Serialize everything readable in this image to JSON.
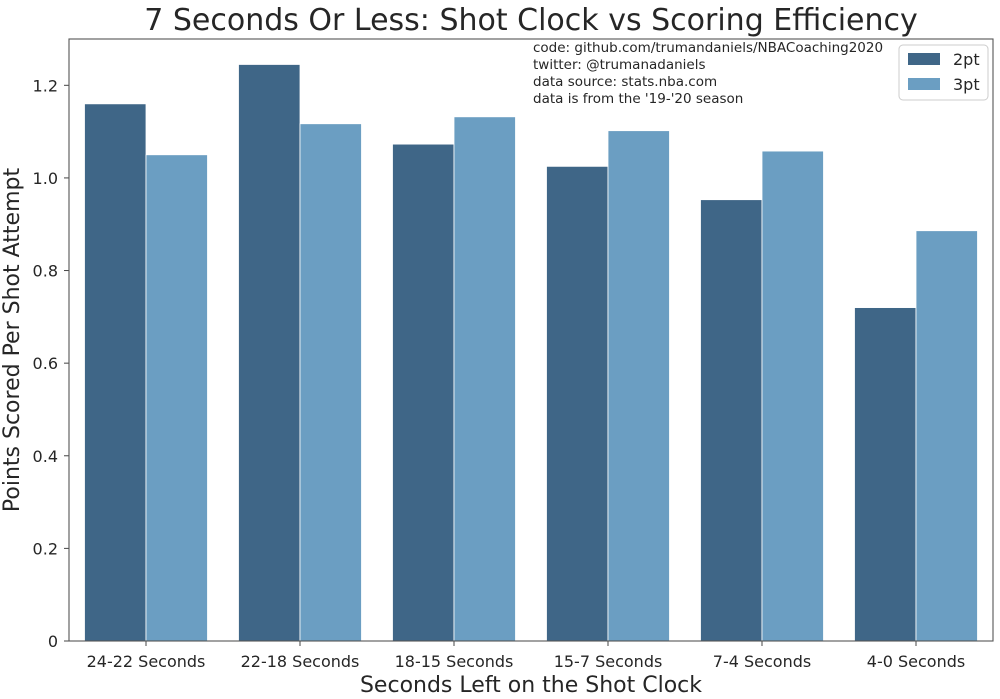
{
  "chart_data": {
    "type": "bar",
    "title": "7 Seconds Or Less: Shot Clock vs Scoring Efficiency",
    "xlabel": "Seconds Left on the Shot Clock",
    "ylabel": "Points Scored Per Shot Attempt",
    "categories": [
      "24-22 Seconds",
      "22-18 Seconds",
      "18-15 Seconds",
      "15-7 Seconds",
      "7-4 Seconds",
      "4-0 Seconds"
    ],
    "series": [
      {
        "name": "2pt",
        "color": "#3f6687",
        "values": [
          1.16,
          1.245,
          1.073,
          1.025,
          0.953,
          0.72
        ]
      },
      {
        "name": "3pt",
        "color": "#6b9ec2",
        "values": [
          1.05,
          1.117,
          1.132,
          1.102,
          1.058,
          0.886
        ]
      }
    ],
    "ylim": [
      0,
      1.3
    ],
    "yticks": [
      0,
      0.2,
      0.4,
      0.6,
      0.8,
      1.0,
      1.2
    ],
    "ytick_labels": [
      "0",
      "0.2",
      "0.4",
      "0.6",
      "0.8",
      "1.0",
      "1.2"
    ],
    "grid": false,
    "legend_position": "top-right",
    "annotations": [
      "code: github.com/trumandaniels/NBACoaching2020",
      "twitter: @trumanadaniels",
      "data source: stats.nba.com",
      "data is from the '19-'20 season"
    ]
  }
}
